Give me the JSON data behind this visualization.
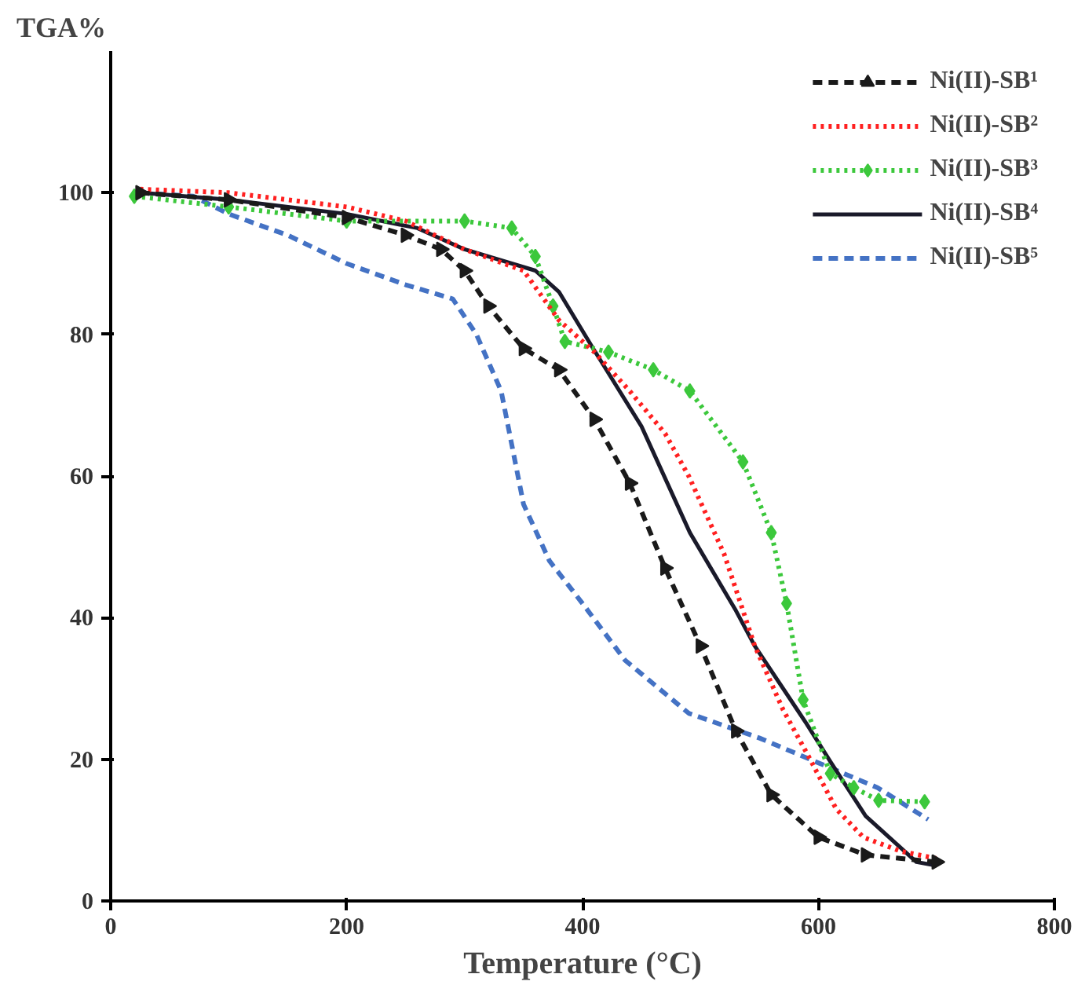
{
  "chart_data": {
    "type": "line",
    "ylabel": "TGA%",
    "xlabel": "Temperature (°C)",
    "xlim": [
      0,
      800
    ],
    "xticks": [
      0,
      200,
      400,
      600,
      800
    ],
    "ylim": [
      0,
      120
    ],
    "yticks": [
      0,
      20,
      40,
      60,
      80,
      100
    ],
    "grid": false,
    "legend": "top right",
    "series": [
      {
        "name": "Ni(II)-SB¹",
        "color": "#1a1a1a",
        "line_style": "dashed",
        "marker": "triangle",
        "x": [
          25,
          100,
          200,
          250,
          280,
          300,
          320,
          350,
          380,
          410,
          440,
          470,
          500,
          530,
          560,
          600,
          640,
          700
        ],
        "values": [
          100,
          99,
          96.5,
          94,
          92,
          89,
          84,
          78,
          75,
          68,
          59,
          47,
          36,
          24,
          15,
          9,
          6.5,
          5.5
        ]
      },
      {
        "name": "Ni(II)-SB²",
        "color": "#ff2020",
        "line_style": "dotted",
        "marker": "none",
        "x": [
          25,
          100,
          200,
          250,
          300,
          350,
          380,
          410,
          440,
          470,
          490,
          520,
          546,
          570,
          591,
          615,
          638,
          670,
          700
        ],
        "values": [
          100.5,
          100,
          98,
          96,
          92,
          89,
          82,
          77.5,
          72,
          66,
          60,
          49,
          36,
          27,
          20.6,
          13,
          9,
          7,
          6
        ]
      },
      {
        "name": "Ni(II)-SB³",
        "color": "#3cc83c",
        "line_style": "dotted",
        "marker": "diamond",
        "x": [
          20,
          100,
          200,
          300,
          340,
          360,
          375,
          385,
          422,
          460,
          491,
          536,
          560,
          573,
          587,
          610,
          630,
          651,
          690
        ],
        "values": [
          99.5,
          98,
          96,
          96,
          95,
          91,
          84,
          79,
          77.5,
          75,
          72,
          62,
          52,
          42,
          28.4,
          18,
          16,
          14.2,
          14
        ]
      },
      {
        "name": "Ni(II)-SB⁴",
        "color": "#1a1a2a",
        "line_style": "solid",
        "marker": "none",
        "x": [
          25,
          100,
          200,
          260,
          300,
          360,
          380,
          409,
          450,
          491,
          530,
          546,
          590,
          610,
          640,
          683,
          700
        ],
        "values": [
          100,
          99,
          97,
          95,
          92,
          89,
          86,
          78,
          67,
          52,
          41,
          36,
          25,
          19.7,
          12,
          5.5,
          5
        ]
      },
      {
        "name": "Ni(II)-SB⁵",
        "color": "#4472c4",
        "line_style": "dashed",
        "marker": "none",
        "x": [
          25,
          70,
          100,
          150,
          200,
          250,
          290,
          310,
          331,
          350,
          372,
          400,
          436,
          490,
          550,
          600,
          650,
          693
        ],
        "values": [
          100,
          99.5,
          97,
          94,
          90,
          87,
          85,
          80,
          72,
          56,
          48,
          42,
          34,
          26.5,
          23,
          19.5,
          16,
          11.5
        ]
      }
    ]
  }
}
